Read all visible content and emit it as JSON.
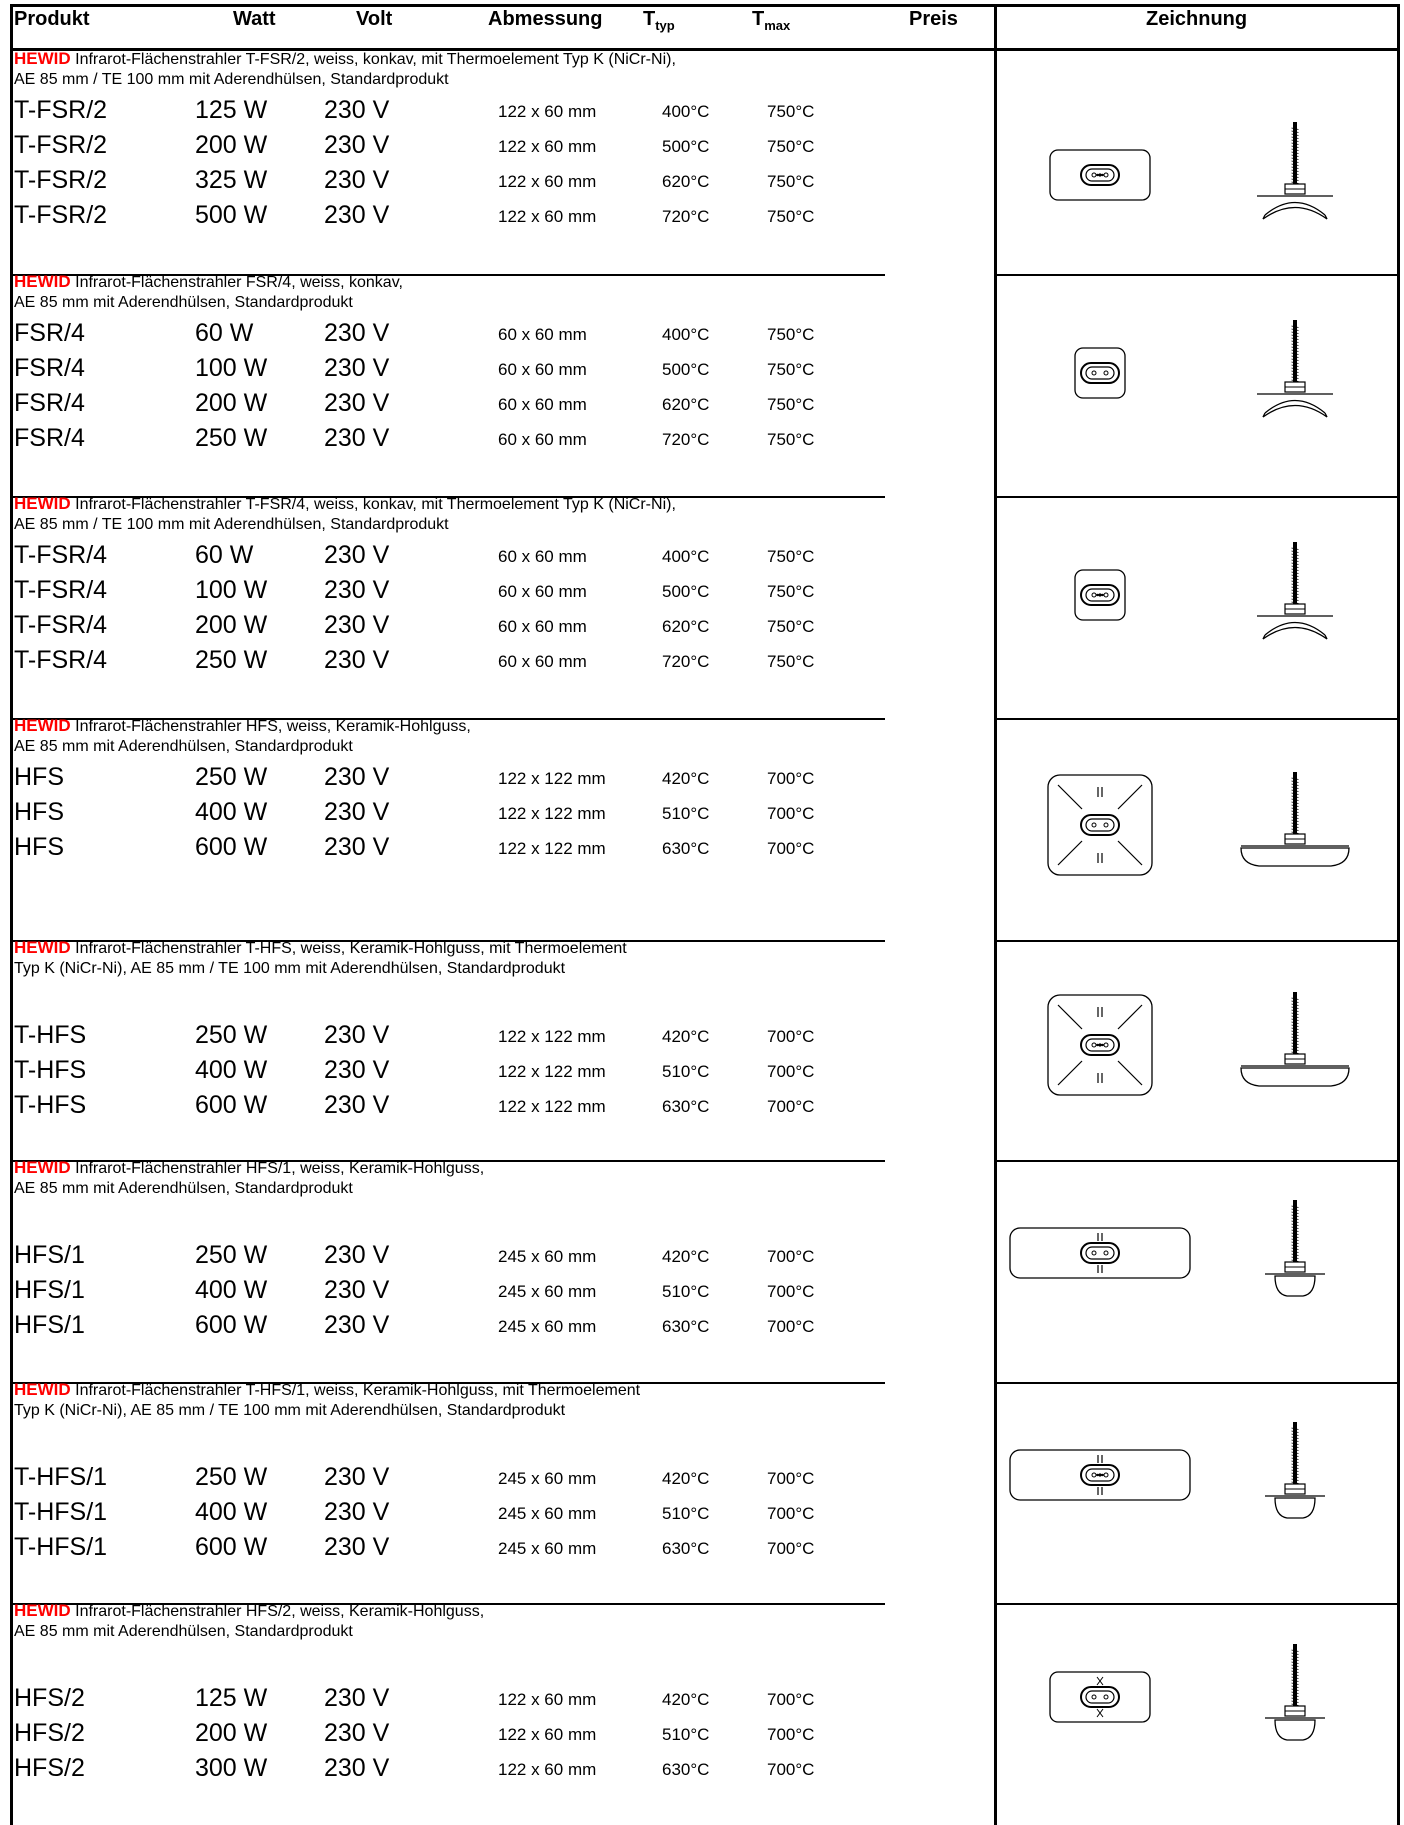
{
  "header": {
    "produkt": "Produkt",
    "watt": "Watt",
    "volt": "Volt",
    "abmessung": "Abmessung",
    "ttyp_main": "T",
    "ttyp_sub": "typ",
    "tmax_main": "T",
    "tmax_sub": "max",
    "preis": "Preis",
    "zeichnung": "Zeichnung"
  },
  "sections": [
    {
      "brand": "HEWID",
      "desc1": "Infrarot-Flächenstrahler T-FSR/2, weiss, konkav, mit Thermoelement Typ K (NiCr-Ni),",
      "desc2": "AE 85 mm / TE 100 mm mit Aderendhülsen, Standardprodukt",
      "drawing_icon": "flat-oval-heater-with-thermocouple-icon",
      "rows": [
        {
          "produkt": "T-FSR/2",
          "watt": "125 W",
          "volt": "230 V",
          "abmessung": "122 x 60 mm",
          "ttyp": "400°C",
          "tmax": "750°C"
        },
        {
          "produkt": "T-FSR/2",
          "watt": "200 W",
          "volt": "230 V",
          "abmessung": "122 x 60 mm",
          "ttyp": "500°C",
          "tmax": "750°C"
        },
        {
          "produkt": "T-FSR/2",
          "watt": "325 W",
          "volt": "230 V",
          "abmessung": "122 x 60 mm",
          "ttyp": "620°C",
          "tmax": "750°C"
        },
        {
          "produkt": "T-FSR/2",
          "watt": "500 W",
          "volt": "230 V",
          "abmessung": "122 x 60 mm",
          "ttyp": "720°C",
          "tmax": "750°C"
        }
      ]
    },
    {
      "brand": "HEWID",
      "desc1": "Infrarot-Flächenstrahler FSR/4, weiss, konkav,",
      "desc2": "AE 85 mm mit Aderendhülsen, Standardprodukt",
      "drawing_icon": "square-concave-heater-icon",
      "rows": [
        {
          "produkt": "FSR/4",
          "watt": "60 W",
          "volt": "230 V",
          "abmessung": "60 x 60 mm",
          "ttyp": "400°C",
          "tmax": "750°C"
        },
        {
          "produkt": "FSR/4",
          "watt": "100 W",
          "volt": "230 V",
          "abmessung": "60 x 60 mm",
          "ttyp": "500°C",
          "tmax": "750°C"
        },
        {
          "produkt": "FSR/4",
          "watt": "200 W",
          "volt": "230 V",
          "abmessung": "60 x 60 mm",
          "ttyp": "620°C",
          "tmax": "750°C"
        },
        {
          "produkt": "FSR/4",
          "watt": "250 W",
          "volt": "230 V",
          "abmessung": "60 x 60 mm",
          "ttyp": "720°C",
          "tmax": "750°C"
        }
      ]
    },
    {
      "brand": "HEWID",
      "desc1": "Infrarot-Flächenstrahler T-FSR/4, weiss, konkav, mit Thermoelement Typ K (NiCr-Ni),",
      "desc2": "AE 85 mm / TE 100 mm mit Aderendhülsen, Standardprodukt",
      "drawing_icon": "square-concave-heater-with-thermocouple-icon",
      "rows": [
        {
          "produkt": "T-FSR/4",
          "watt": "60 W",
          "volt": "230 V",
          "abmessung": "60 x 60 mm",
          "ttyp": "400°C",
          "tmax": "750°C"
        },
        {
          "produkt": "T-FSR/4",
          "watt": "100 W",
          "volt": "230 V",
          "abmessung": "60 x 60 mm",
          "ttyp": "500°C",
          "tmax": "750°C"
        },
        {
          "produkt": "T-FSR/4",
          "watt": "200 W",
          "volt": "230 V",
          "abmessung": "60 x 60 mm",
          "ttyp": "620°C",
          "tmax": "750°C"
        },
        {
          "produkt": "T-FSR/4",
          "watt": "250 W",
          "volt": "230 V",
          "abmessung": "60 x 60 mm",
          "ttyp": "720°C",
          "tmax": "750°C"
        }
      ]
    },
    {
      "brand": "HEWID",
      "desc1": "Infrarot-Flächenstrahler HFS, weiss, Keramik-Hohlguss,",
      "desc2": "AE 85 mm mit Aderendhülsen, Standardprodukt",
      "drawing_icon": "hollow-cast-square-heater-icon",
      "rows": [
        {
          "produkt": "HFS",
          "watt": "250 W",
          "volt": "230 V",
          "abmessung": "122 x 122 mm",
          "ttyp": "420°C",
          "tmax": "700°C"
        },
        {
          "produkt": "HFS",
          "watt": "400 W",
          "volt": "230 V",
          "abmessung": "122 x 122 mm",
          "ttyp": "510°C",
          "tmax": "700°C"
        },
        {
          "produkt": "HFS",
          "watt": "600 W",
          "volt": "230 V",
          "abmessung": "122 x 122 mm",
          "ttyp": "630°C",
          "tmax": "700°C"
        }
      ]
    },
    {
      "brand": "HEWID",
      "desc1": "Infrarot-Flächenstrahler T-HFS, weiss, Keramik-Hohlguss, mit Thermoelement",
      "desc2": "Typ K (NiCr-Ni), AE 85 mm / TE 100 mm mit Aderendhülsen, Standardprodukt",
      "drawing_icon": "hollow-cast-square-heater-with-thermocouple-icon",
      "rows": [
        {
          "produkt": "T-HFS",
          "watt": "250 W",
          "volt": "230 V",
          "abmessung": "122 x 122 mm",
          "ttyp": "420°C",
          "tmax": "700°C"
        },
        {
          "produkt": "T-HFS",
          "watt": "400 W",
          "volt": "230 V",
          "abmessung": "122 x 122 mm",
          "ttyp": "510°C",
          "tmax": "700°C"
        },
        {
          "produkt": "T-HFS",
          "watt": "600 W",
          "volt": "230 V",
          "abmessung": "122 x 122 mm",
          "ttyp": "630°C",
          "tmax": "700°C"
        }
      ]
    },
    {
      "brand": "HEWID",
      "desc1": "Infrarot-Flächenstrahler HFS/1, weiss, Keramik-Hohlguss,",
      "desc2": "AE 85 mm mit Aderendhülsen, Standardprodukt",
      "drawing_icon": "hollow-cast-long-heater-icon",
      "rows": [
        {
          "produkt": "HFS/1",
          "watt": "250 W",
          "volt": "230 V",
          "abmessung": "245 x 60 mm",
          "ttyp": "420°C",
          "tmax": "700°C"
        },
        {
          "produkt": "HFS/1",
          "watt": "400 W",
          "volt": "230 V",
          "abmessung": "245 x 60 mm",
          "ttyp": "510°C",
          "tmax": "700°C"
        },
        {
          "produkt": "HFS/1",
          "watt": "600 W",
          "volt": "230 V",
          "abmessung": "245 x 60 mm",
          "ttyp": "630°C",
          "tmax": "700°C"
        }
      ]
    },
    {
      "brand": "HEWID",
      "desc1": "Infrarot-Flächenstrahler T-HFS/1, weiss, Keramik-Hohlguss, mit Thermoelement",
      "desc2": "Typ K (NiCr-Ni), AE 85 mm / TE 100 mm mit Aderendhülsen, Standardprodukt",
      "drawing_icon": "hollow-cast-long-heater-with-thermocouple-icon",
      "rows": [
        {
          "produkt": "T-HFS/1",
          "watt": "250 W",
          "volt": "230 V",
          "abmessung": "245 x 60 mm",
          "ttyp": "420°C",
          "tmax": "700°C"
        },
        {
          "produkt": "T-HFS/1",
          "watt": "400 W",
          "volt": "230 V",
          "abmessung": "245 x 60 mm",
          "ttyp": "510°C",
          "tmax": "700°C"
        },
        {
          "produkt": "T-HFS/1",
          "watt": "600 W",
          "volt": "230 V",
          "abmessung": "245 x 60 mm",
          "ttyp": "630°C",
          "tmax": "700°C"
        }
      ]
    },
    {
      "brand": "HEWID",
      "desc1": "Infrarot-Flächenstrahler HFS/2, weiss, Keramik-Hohlguss,",
      "desc2": "AE 85 mm mit Aderendhülsen, Standardprodukt",
      "drawing_icon": "hollow-cast-oval-heater-icon",
      "rows": [
        {
          "produkt": "HFS/2",
          "watt": "125 W",
          "volt": "230 V",
          "abmessung": "122 x 60 mm",
          "ttyp": "420°C",
          "tmax": "700°C"
        },
        {
          "produkt": "HFS/2",
          "watt": "200 W",
          "volt": "230 V",
          "abmessung": "122 x 60 mm",
          "ttyp": "510°C",
          "tmax": "700°C"
        },
        {
          "produkt": "HFS/2",
          "watt": "300 W",
          "volt": "230 V",
          "abmessung": "122 x 60 mm",
          "ttyp": "630°C",
          "tmax": "700°C"
        }
      ]
    }
  ]
}
